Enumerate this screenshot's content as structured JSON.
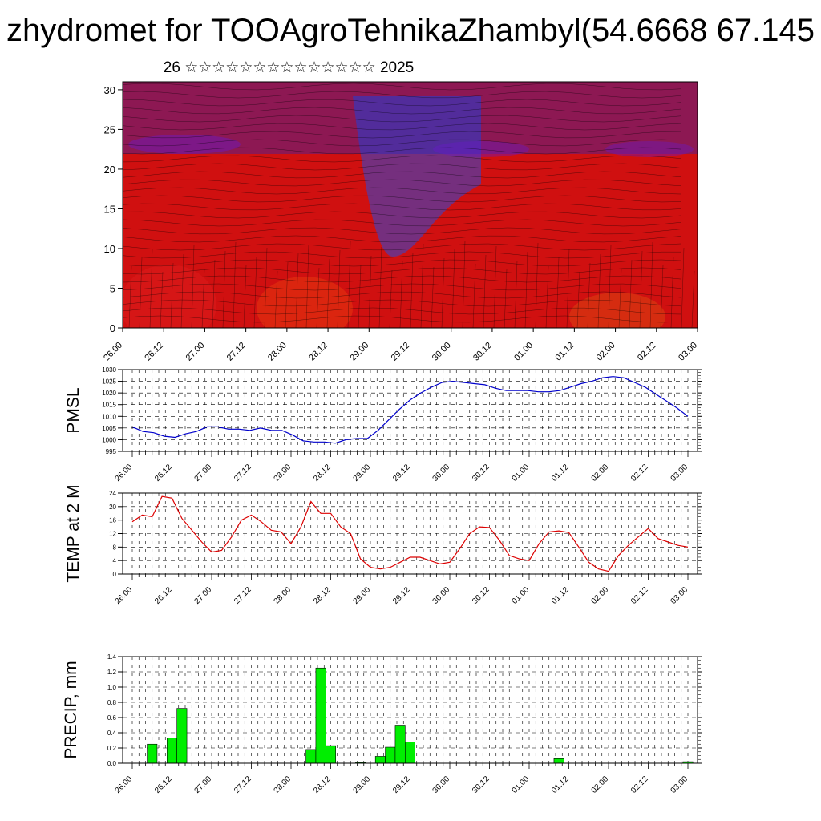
{
  "title": "zhydromet for TOOAgroTehnikaZhambyl(54.6668 67.145",
  "subtitle": "26 ☆☆☆☆☆☆☆☆☆☆☆☆☆☆ 2025",
  "time_ticks": [
    "26.00",
    "26.12",
    "27.00",
    "27.12",
    "28.00",
    "28.12",
    "29.00",
    "29.12",
    "30.00",
    "30.12",
    "01.00",
    "01.12",
    "02.00",
    "02.12",
    "03.00"
  ],
  "chart_data": [
    {
      "type": "heatmap",
      "title": "",
      "xlabel": "",
      "ylabel": "",
      "x_ticks": [
        "26.00",
        "26.12",
        "27.00",
        "27.12",
        "28.00",
        "28.12",
        "29.00",
        "29.12",
        "30.00",
        "30.12",
        "01.00",
        "01.12",
        "02.00",
        "02.12",
        "03.00"
      ],
      "y_ticks": [
        0,
        5,
        10,
        15,
        20,
        25,
        30
      ],
      "ylim": [
        0,
        31
      ],
      "colormap": [
        "#d01010",
        "#f05a10",
        "#f8a020",
        "#ffe060",
        "#eeeeee",
        "#90c8f0",
        "#3070e0",
        "#1020d0",
        "#6010c0"
      ],
      "wind_barbs": true
    },
    {
      "type": "line",
      "ylabel": "PMSL",
      "color": "#0000cc",
      "ylim": [
        995,
        1030
      ],
      "y_ticks": [
        995,
        1000,
        1005,
        1010,
        1015,
        1020,
        1025,
        1030
      ],
      "x_ticks": [
        "26.00",
        "26.12",
        "27.00",
        "27.12",
        "28.00",
        "28.12",
        "29.00",
        "29.12",
        "30.00",
        "30.12",
        "01.00",
        "01.12",
        "02.00",
        "02.12",
        "03.00"
      ],
      "grid": true,
      "values": [
        1005.5,
        1003.5,
        1003,
        1001.5,
        1001,
        1002.5,
        1003.5,
        1005.5,
        1005.5,
        1004.5,
        1004.5,
        1004,
        1005,
        1004,
        1004,
        1002,
        999.5,
        999,
        999,
        998.5,
        1000,
        1000.5,
        1000.5,
        1004,
        1008.5,
        1013,
        1017,
        1020,
        1022.5,
        1024.5,
        1025,
        1024.5,
        1024,
        1023.5,
        1022,
        1021,
        1021,
        1021,
        1020.5,
        1020.5,
        1021,
        1022.5,
        1024,
        1025,
        1026.5,
        1027,
        1026.5,
        1024.5,
        1022.5,
        1019.5,
        1016.5,
        1013.5,
        1010
      ]
    },
    {
      "type": "line",
      "ylabel": "TEMP at 2 M",
      "color": "#dd0000",
      "ylim": [
        0,
        24
      ],
      "y_ticks": [
        0,
        4,
        8,
        12,
        16,
        20,
        24
      ],
      "x_ticks": [
        "26.00",
        "26.12",
        "27.00",
        "27.12",
        "28.00",
        "28.12",
        "29.00",
        "29.12",
        "30.00",
        "30.12",
        "01.00",
        "01.12",
        "02.00",
        "02.12",
        "03.00"
      ],
      "grid": true,
      "values": [
        15.5,
        17.5,
        17,
        23,
        22.5,
        16.5,
        13,
        9.5,
        6.5,
        7,
        11,
        16,
        17.5,
        15.5,
        13,
        12.5,
        9,
        14,
        21.5,
        18,
        18,
        14,
        12,
        4.5,
        2,
        1.5,
        2,
        3.5,
        5,
        5,
        4,
        3,
        3.5,
        7.5,
        12,
        14,
        13.8,
        10,
        5.5,
        4.5,
        4,
        9,
        12.5,
        12.8,
        12.3,
        8,
        3.5,
        1.5,
        0.8,
        5.5,
        8.5,
        11,
        13.5,
        10.5,
        9.5,
        8.5,
        8
      ]
    },
    {
      "type": "bar",
      "ylabel": "PRECIP, mm",
      "color": "#00ee00",
      "ylim": [
        0,
        1.4
      ],
      "y_ticks": [
        "0.0",
        "0.2",
        "0.4",
        "0.6",
        "0.8",
        "1.0",
        "1.2",
        "1.4"
      ],
      "x_ticks": [
        "26.00",
        "26.12",
        "27.00",
        "27.12",
        "28.00",
        "28.12",
        "29.00",
        "29.12",
        "30.00",
        "30.12",
        "01.00",
        "01.12",
        "02.00",
        "02.12",
        "03.00"
      ],
      "grid": true,
      "values": [
        0,
        0,
        0.25,
        0,
        0.33,
        0.72,
        0,
        0,
        0,
        0,
        0,
        0,
        0,
        0,
        0,
        0,
        0,
        0,
        0.18,
        1.25,
        0.23,
        0,
        0,
        0.01,
        0,
        0.09,
        0.21,
        0.5,
        0.28,
        0,
        0,
        0,
        0,
        0,
        0,
        0,
        0,
        0,
        0,
        0,
        0,
        0,
        0,
        0.06,
        0,
        0,
        0,
        0,
        0,
        0,
        0,
        0,
        0,
        0,
        0,
        0,
        0.02
      ]
    }
  ]
}
